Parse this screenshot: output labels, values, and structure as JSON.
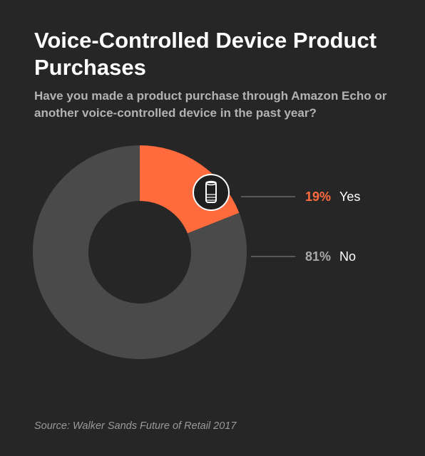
{
  "title": "Voice-Controlled Device Product Purchases",
  "subtitle": "Have you made a product purchase through Amazon Echo or another voice-controlled device in the past year?",
  "source": "Source: Walker Sands Future of Retail 2017",
  "icon": "smart-speaker-icon",
  "colors": {
    "background": "#262626",
    "yes": "#ff6b3d",
    "no": "#4a4a4a",
    "no_label": "#a8a8a8",
    "leader": "#6a6a6a"
  },
  "chart_data": {
    "type": "pie",
    "donut": true,
    "title": "Voice-Controlled Device Product Purchases",
    "subtitle": "Have you made a product purchase through Amazon Echo or another voice-controlled device in the past year?",
    "categories": [
      "Yes",
      "No"
    ],
    "values": [
      19,
      81
    ],
    "value_labels": [
      "19%",
      "81%"
    ],
    "colors": [
      "#ff6b3d",
      "#4a4a4a"
    ],
    "label_colors": [
      "#ff6b3d",
      "#a8a8a8"
    ],
    "legend": "right"
  }
}
